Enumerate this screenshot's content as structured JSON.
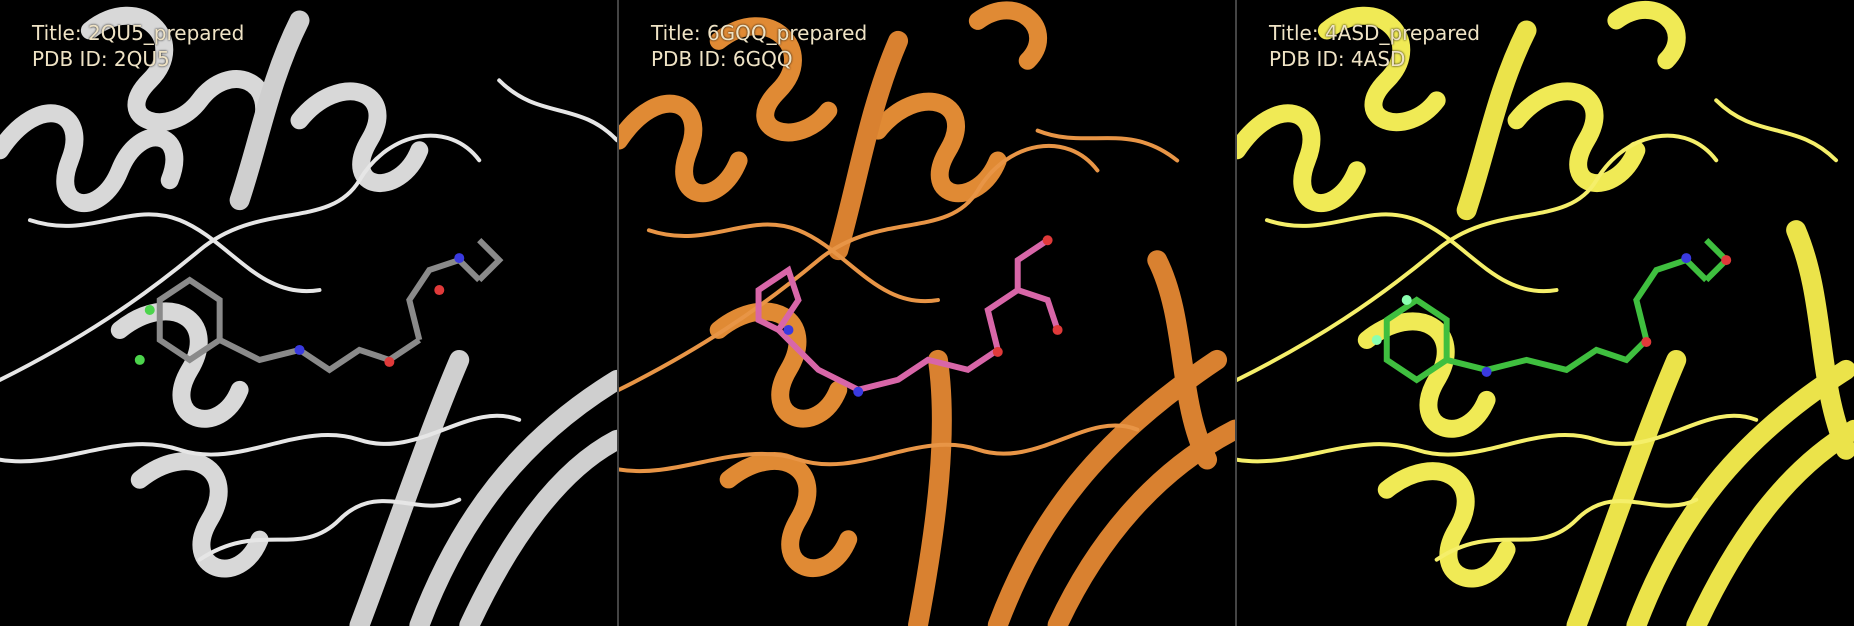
{
  "panels": [
    {
      "title_line": "Title: 2QU5_prepared",
      "pdb_line": "PDB ID: 2QU5",
      "protein_color": "#dcdcdc",
      "ligand_color": "#8a8a8a"
    },
    {
      "title_line": "Title: 6GQQ_prepared",
      "pdb_line": "PDB ID: 6GQQ",
      "protein_color": "#e08a34",
      "ligand_color": "#d866a8"
    },
    {
      "title_line": "Title: 4ASD_prepared",
      "pdb_line": "PDB ID: 4ASD",
      "protein_color": "#f0ea55",
      "ligand_color": "#3fbf3f"
    }
  ]
}
